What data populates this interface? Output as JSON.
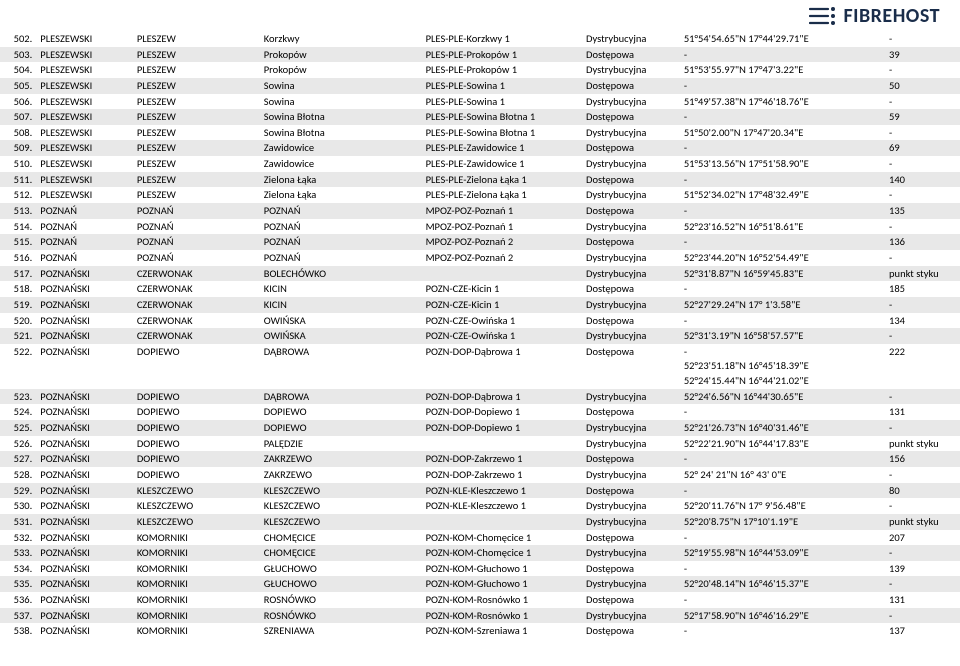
{
  "logo_text": "FIBREHOST",
  "rows": [
    {
      "n": "502.",
      "pow": "PLESZEWSKI",
      "gm": "PLESZEW",
      "m": "Korzkwy",
      "node": "PLES-PLE-Korzkwy 1",
      "type": "Dystrybucyjna",
      "coord": "51°54'54.65\"N 17°44'29.71\"E",
      "last": "-",
      "shade": false
    },
    {
      "n": "503.",
      "pow": "PLESZEWSKI",
      "gm": "PLESZEW",
      "m": "Prokopów",
      "node": "PLES-PLE-Prokopów 1",
      "type": "Dostępowa",
      "coord": "-",
      "last": "39",
      "shade": true
    },
    {
      "n": "504.",
      "pow": "PLESZEWSKI",
      "gm": "PLESZEW",
      "m": "Prokopów",
      "node": "PLES-PLE-Prokopów 1",
      "type": "Dystrybucyjna",
      "coord": "51°53'55.97\"N 17°47'3.22\"E",
      "last": "-",
      "shade": false
    },
    {
      "n": "505.",
      "pow": "PLESZEWSKI",
      "gm": "PLESZEW",
      "m": "Sowina",
      "node": "PLES-PLE-Sowina 1",
      "type": "Dostępowa",
      "coord": "-",
      "last": "50",
      "shade": true
    },
    {
      "n": "506.",
      "pow": "PLESZEWSKI",
      "gm": "PLESZEW",
      "m": "Sowina",
      "node": "PLES-PLE-Sowina 1",
      "type": "Dystrybucyjna",
      "coord": "51°49'57.38\"N 17°46'18.76\"E",
      "last": "-",
      "shade": false
    },
    {
      "n": "507.",
      "pow": "PLESZEWSKI",
      "gm": "PLESZEW",
      "m": "Sowina Błotna",
      "node": "PLES-PLE-Sowina Błotna 1",
      "type": "Dostępowa",
      "coord": "-",
      "last": "59",
      "shade": true
    },
    {
      "n": "508.",
      "pow": "PLESZEWSKI",
      "gm": "PLESZEW",
      "m": "Sowina Błotna",
      "node": "PLES-PLE-Sowina Błotna 1",
      "type": "Dystrybucyjna",
      "coord": "51°50'2.00\"N 17°47'20.34\"E",
      "last": "-",
      "shade": false
    },
    {
      "n": "509.",
      "pow": "PLESZEWSKI",
      "gm": "PLESZEW",
      "m": "Zawidowice",
      "node": "PLES-PLE-Zawidowice 1",
      "type": "Dostępowa",
      "coord": "-",
      "last": "69",
      "shade": true
    },
    {
      "n": "510.",
      "pow": "PLESZEWSKI",
      "gm": "PLESZEW",
      "m": "Zawidowice",
      "node": "PLES-PLE-Zawidowice 1",
      "type": "Dystrybucyjna",
      "coord": "51°53'13.56\"N 17°51'58.90\"E",
      "last": "-",
      "shade": false
    },
    {
      "n": "511.",
      "pow": "PLESZEWSKI",
      "gm": "PLESZEW",
      "m": "Zielona Łąka",
      "node": "PLES-PLE-Zielona Łąka 1",
      "type": "Dostępowa",
      "coord": "-",
      "last": "140",
      "shade": true
    },
    {
      "n": "512.",
      "pow": "PLESZEWSKI",
      "gm": "PLESZEW",
      "m": "Zielona Łąka",
      "node": "PLES-PLE-Zielona Łąka 1",
      "type": "Dystrybucyjna",
      "coord": "51°52'34.02\"N 17°48'32.49\"E",
      "last": "-",
      "shade": false
    },
    {
      "n": "513.",
      "pow": "POZNAŃ",
      "gm": "POZNAŃ",
      "m": "POZNAŃ",
      "node": "MPOZ-POZ-Poznań 1",
      "type": "Dostępowa",
      "coord": "-",
      "last": "135",
      "shade": true
    },
    {
      "n": "514.",
      "pow": "POZNAŃ",
      "gm": "POZNAŃ",
      "m": "POZNAŃ",
      "node": "MPOZ-POZ-Poznań 1",
      "type": "Dystrybucyjna",
      "coord": "52°23'16.52\"N 16°51'8.61\"E",
      "last": "-",
      "shade": false
    },
    {
      "n": "515.",
      "pow": "POZNAŃ",
      "gm": "POZNAŃ",
      "m": "POZNAŃ",
      "node": "MPOZ-POZ-Poznań 2",
      "type": "Dostępowa",
      "coord": "-",
      "last": "136",
      "shade": true
    },
    {
      "n": "516.",
      "pow": "POZNAŃ",
      "gm": "POZNAŃ",
      "m": "POZNAŃ",
      "node": "MPOZ-POZ-Poznań 2",
      "type": "Dystrybucyjna",
      "coord": "52°23'44.20\"N 16°52'54.49\"E",
      "last": "-",
      "shade": false
    },
    {
      "n": "517.",
      "pow": "POZNAŃSKI",
      "gm": "CZERWONAK",
      "m": "BOLECHÓWKO",
      "node": "",
      "type": "Dystrybucyjna",
      "coord": "52°31'8.87\"N 16°59'45.83\"E",
      "last": "punkt styku",
      "shade": true
    },
    {
      "n": "518.",
      "pow": "POZNAŃSKI",
      "gm": "CZERWONAK",
      "m": "KICIN",
      "node": "POZN-CZE-Kicin 1",
      "type": "Dostępowa",
      "coord": "-",
      "last": "185",
      "shade": false
    },
    {
      "n": "519.",
      "pow": "POZNAŃSKI",
      "gm": "CZERWONAK",
      "m": "KICIN",
      "node": "POZN-CZE-Kicin 1",
      "type": "Dystrybucyjna",
      "coord": "52°27'29.24\"N 17° 1'3.58\"E",
      "last": "-",
      "shade": true
    },
    {
      "n": "520.",
      "pow": "POZNAŃSKI",
      "gm": "CZERWONAK",
      "m": "OWIŃSKA",
      "node": "POZN-CZE-Owińska 1",
      "type": "Dostępowa",
      "coord": "-",
      "last": "134",
      "shade": false
    },
    {
      "n": "521.",
      "pow": "POZNAŃSKI",
      "gm": "CZERWONAK",
      "m": "OWIŃSKA",
      "node": "POZN-CZE-Owińska 1",
      "type": "Dystrybucyjna",
      "coord": "52°31'3.19\"N 16°58'57.57\"E",
      "last": "-",
      "shade": true
    },
    {
      "n": "522.",
      "pow": "POZNAŃSKI",
      "gm": "DOPIEWO",
      "m": "DĄBROWA",
      "node": "POZN-DOP-Dąbrowa 1",
      "type": "Dostępowa",
      "coord": "-",
      "last": "222",
      "shade": false,
      "extra_coords": [
        "52°23'51.18\"N 16°45'18.39\"E",
        "52°24'15.44\"N 16°44'21.02\"E"
      ]
    },
    {
      "n": "523.",
      "pow": "POZNAŃSKI",
      "gm": "DOPIEWO",
      "m": "DĄBROWA",
      "node": "POZN-DOP-Dąbrowa 1",
      "type": "Dystrybucyjna",
      "coord": "52°24'6.56\"N 16°44'30.65\"E",
      "last": "-",
      "shade": true
    },
    {
      "n": "524.",
      "pow": "POZNAŃSKI",
      "gm": "DOPIEWO",
      "m": "DOPIEWO",
      "node": "POZN-DOP-Dopiewo 1",
      "type": "Dostępowa",
      "coord": "-",
      "last": "131",
      "shade": false
    },
    {
      "n": "525.",
      "pow": "POZNAŃSKI",
      "gm": "DOPIEWO",
      "m": "DOPIEWO",
      "node": "POZN-DOP-Dopiewo 1",
      "type": "Dystrybucyjna",
      "coord": "52°21'26.73\"N 16°40'31.46\"E",
      "last": "-",
      "shade": true
    },
    {
      "n": "526.",
      "pow": "POZNAŃSKI",
      "gm": "DOPIEWO",
      "m": "PALĘDZIE",
      "node": "",
      "type": "Dystrybucyjna",
      "coord": "52°22'21.90\"N 16°44'17.83\"E",
      "last": "punkt styku",
      "shade": false
    },
    {
      "n": "527.",
      "pow": "POZNAŃSKI",
      "gm": "DOPIEWO",
      "m": "ZAKRZEWO",
      "node": "POZN-DOP-Zakrzewo 1",
      "type": "Dostępowa",
      "coord": "-",
      "last": "156",
      "shade": true
    },
    {
      "n": "528.",
      "pow": "POZNAŃSKI",
      "gm": "DOPIEWO",
      "m": "ZAKRZEWO",
      "node": "POZN-DOP-Zakrzewo 1",
      "type": "Dystrybucyjna",
      "coord": "52° 24' 21\"N 16° 43' 0\"E",
      "last": "-",
      "shade": false
    },
    {
      "n": "529.",
      "pow": "POZNAŃSKI",
      "gm": "KLESZCZEWO",
      "m": "KLESZCZEWO",
      "node": "POZN-KLE-Kleszczewo 1",
      "type": "Dostępowa",
      "coord": "-",
      "last": "80",
      "shade": true
    },
    {
      "n": "530.",
      "pow": "POZNAŃSKI",
      "gm": "KLESZCZEWO",
      "m": "KLESZCZEWO",
      "node": "POZN-KLE-Kleszczewo 1",
      "type": "Dystrybucyjna",
      "coord": "52°20'11.76\"N 17° 9'56.48\"E",
      "last": "-",
      "shade": false
    },
    {
      "n": "531.",
      "pow": "POZNAŃSKI",
      "gm": "KLESZCZEWO",
      "m": "KLESZCZEWO",
      "node": "",
      "type": "Dystrybucyjna",
      "coord": "52°20'8.75\"N 17°10'1.19\"E",
      "last": "punkt styku",
      "shade": true
    },
    {
      "n": "532.",
      "pow": "POZNAŃSKI",
      "gm": "KOMORNIKI",
      "m": "CHOMĘCICE",
      "node": "POZN-KOM-Chomęcice 1",
      "type": "Dostępowa",
      "coord": "-",
      "last": "207",
      "shade": false
    },
    {
      "n": "533.",
      "pow": "POZNAŃSKI",
      "gm": "KOMORNIKI",
      "m": "CHOMĘCICE",
      "node": "POZN-KOM-Chomęcice 1",
      "type": "Dystrybucyjna",
      "coord": "52°19'55.98\"N 16°44'53.09\"E",
      "last": "-",
      "shade": true
    },
    {
      "n": "534.",
      "pow": "POZNAŃSKI",
      "gm": "KOMORNIKI",
      "m": "GŁUCHOWO",
      "node": "POZN-KOM-Głuchowo 1",
      "type": "Dostępowa",
      "coord": "-",
      "last": "139",
      "shade": false
    },
    {
      "n": "535.",
      "pow": "POZNAŃSKI",
      "gm": "KOMORNIKI",
      "m": "GŁUCHOWO",
      "node": "POZN-KOM-Głuchowo 1",
      "type": "Dystrybucyjna",
      "coord": "52°20'48.14\"N 16°46'15.37\"E",
      "last": "-",
      "shade": true
    },
    {
      "n": "536.",
      "pow": "POZNAŃSKI",
      "gm": "KOMORNIKI",
      "m": "ROSNÓWKO",
      "node": "POZN-KOM-Rosnówko 1",
      "type": "Dostępowa",
      "coord": "-",
      "last": "131",
      "shade": false
    },
    {
      "n": "537.",
      "pow": "POZNAŃSKI",
      "gm": "KOMORNIKI",
      "m": "ROSNÓWKO",
      "node": "POZN-KOM-Rosnówko 1",
      "type": "Dystrybucyjna",
      "coord": "52°17'58.90\"N 16°46'16.29\"E",
      "last": "-",
      "shade": true
    },
    {
      "n": "538.",
      "pow": "POZNAŃSKI",
      "gm": "KOMORNIKI",
      "m": "SZRENIAWA",
      "node": "POZN-KOM-Szreniawa 1",
      "type": "Dostępowa",
      "coord": "-",
      "last": "137",
      "shade": false
    }
  ]
}
